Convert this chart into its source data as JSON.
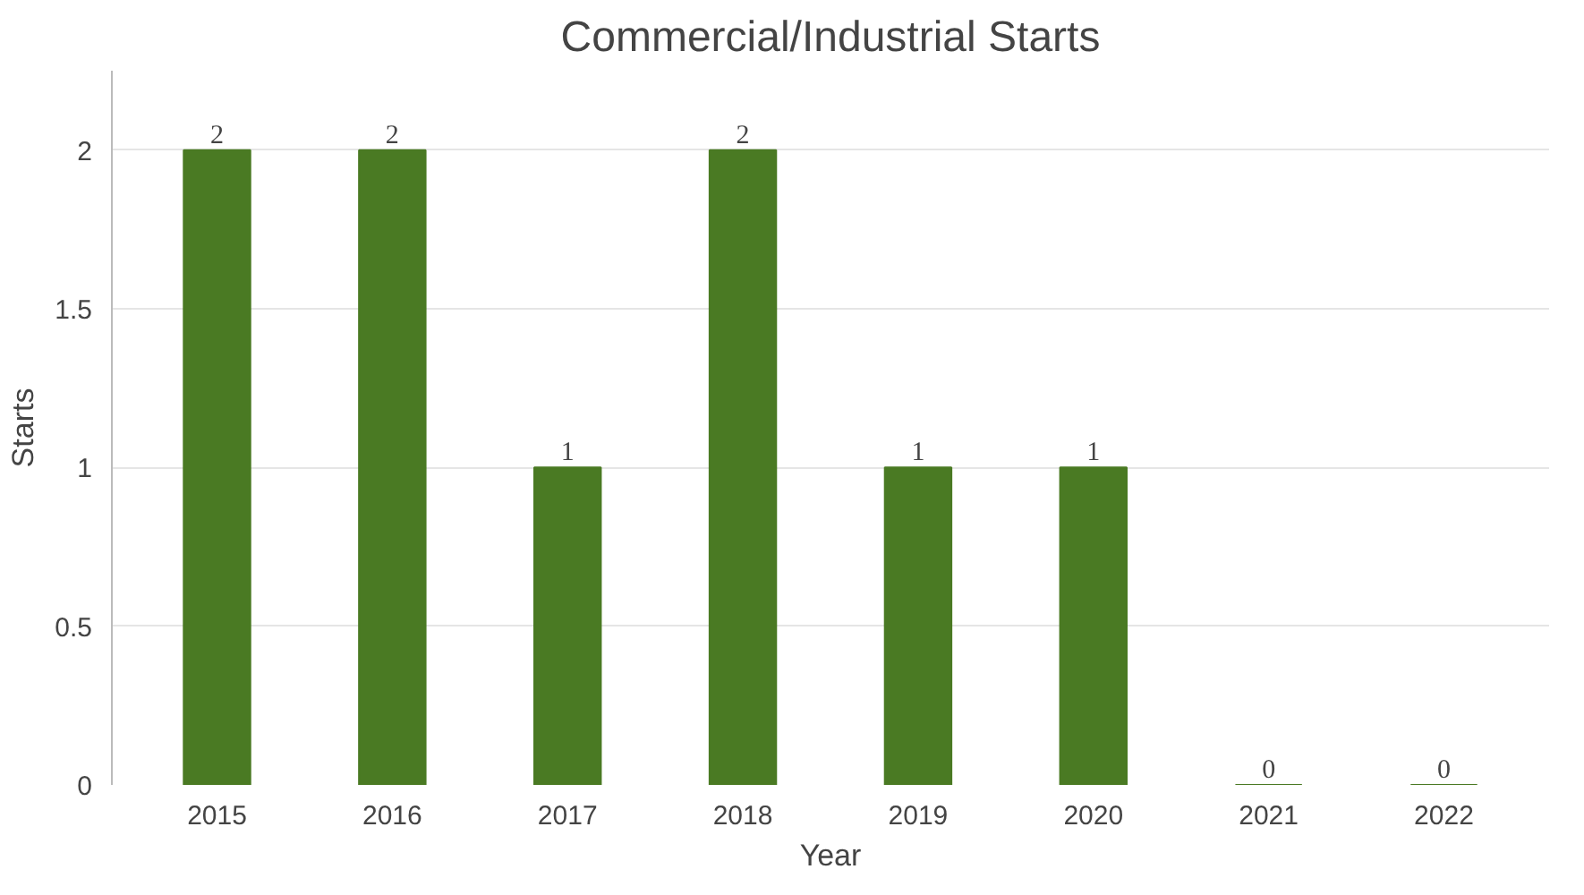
{
  "chart_data": {
    "type": "bar",
    "title": "Commercial/Industrial Starts",
    "xlabel": "Year",
    "ylabel": "Starts",
    "categories": [
      "2015",
      "2016",
      "2017",
      "2018",
      "2019",
      "2020",
      "2021",
      "2022"
    ],
    "values": [
      2,
      2,
      1,
      2,
      1,
      1,
      0,
      0
    ],
    "color": "#4a7a23",
    "ylim": [
      0,
      2.25
    ],
    "yticks": [
      0,
      0.5,
      1,
      1.5,
      2
    ],
    "grid": "y",
    "data_labels": true
  }
}
